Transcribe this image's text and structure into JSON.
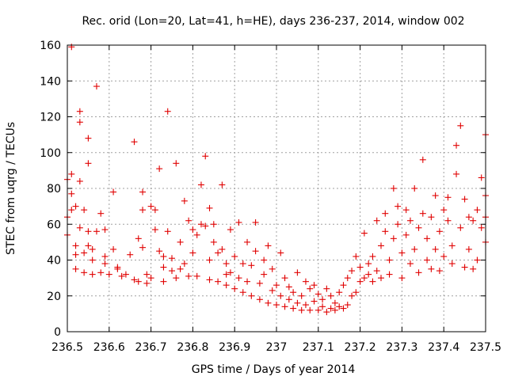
{
  "chart_data": {
    "type": "scatter",
    "title": "Rec. orid (Lon=20, Lat=41, h=HE), days 236-237, 2014, window 002",
    "xlabel": "GPS time / Days of year 2014",
    "ylabel": "STEC from uqrg / TECUs",
    "xlim": [
      236.5,
      237.5
    ],
    "ylim": [
      0,
      160
    ],
    "xticks": [
      "236.5",
      "236.6",
      "236.7",
      "236.8",
      "236.9",
      "237",
      "237.1",
      "237.2",
      "237.3",
      "237.4",
      "237.5"
    ],
    "xtick_values": [
      236.5,
      236.6,
      236.7,
      236.8,
      236.9,
      237.0,
      237.1,
      237.2,
      237.3,
      237.4,
      237.5
    ],
    "yticks": [
      "0",
      "20",
      "40",
      "60",
      "80",
      "100",
      "120",
      "140",
      "160"
    ],
    "ytick_values": [
      0,
      20,
      40,
      60,
      80,
      100,
      120,
      140,
      160
    ],
    "grid": true,
    "marker": "+",
    "color": "#e00000",
    "series": [
      {
        "points": [
          [
            236.5,
            54
          ],
          [
            236.5,
            64
          ],
          [
            236.5,
            85
          ],
          [
            236.51,
            68
          ],
          [
            236.51,
            88
          ],
          [
            236.51,
            77
          ],
          [
            236.51,
            159
          ],
          [
            236.52,
            35
          ],
          [
            236.52,
            43
          ],
          [
            236.52,
            48
          ],
          [
            236.52,
            70
          ],
          [
            236.53,
            58
          ],
          [
            236.53,
            84
          ],
          [
            236.53,
            117
          ],
          [
            236.53,
            123
          ],
          [
            236.54,
            33
          ],
          [
            236.54,
            44
          ],
          [
            236.54,
            68
          ],
          [
            236.55,
            56
          ],
          [
            236.55,
            108
          ],
          [
            236.55,
            94
          ],
          [
            236.55,
            48
          ],
          [
            236.56,
            32
          ],
          [
            236.56,
            40
          ],
          [
            236.56,
            46
          ],
          [
            236.57,
            137
          ],
          [
            236.57,
            56
          ],
          [
            236.58,
            66
          ],
          [
            236.58,
            33
          ],
          [
            236.59,
            42
          ],
          [
            236.59,
            38
          ],
          [
            236.59,
            57
          ],
          [
            236.6,
            32
          ],
          [
            236.61,
            78
          ],
          [
            236.61,
            46
          ],
          [
            236.62,
            35
          ],
          [
            236.62,
            36
          ],
          [
            236.63,
            31
          ],
          [
            236.64,
            32
          ],
          [
            236.65,
            43
          ],
          [
            236.66,
            106
          ],
          [
            236.66,
            29
          ],
          [
            236.67,
            28
          ],
          [
            236.67,
            52
          ],
          [
            236.68,
            78
          ],
          [
            236.68,
            68
          ],
          [
            236.68,
            47
          ],
          [
            236.69,
            32
          ],
          [
            236.69,
            27
          ],
          [
            236.7,
            30
          ],
          [
            236.7,
            70
          ],
          [
            236.71,
            68
          ],
          [
            236.71,
            57
          ],
          [
            236.72,
            91
          ],
          [
            236.72,
            45
          ],
          [
            236.73,
            42
          ],
          [
            236.73,
            36
          ],
          [
            236.73,
            28
          ],
          [
            236.74,
            56
          ],
          [
            236.74,
            123
          ],
          [
            236.75,
            34
          ],
          [
            236.75,
            41
          ],
          [
            236.76,
            94
          ],
          [
            236.76,
            30
          ],
          [
            236.77,
            35
          ],
          [
            236.77,
            50
          ],
          [
            236.78,
            73
          ],
          [
            236.78,
            38
          ],
          [
            236.79,
            31
          ],
          [
            236.79,
            62
          ],
          [
            236.8,
            57
          ],
          [
            236.8,
            44
          ],
          [
            236.81,
            31
          ],
          [
            236.81,
            54
          ],
          [
            236.82,
            60
          ],
          [
            236.82,
            82
          ],
          [
            236.83,
            98
          ],
          [
            236.83,
            59
          ],
          [
            236.84,
            29
          ],
          [
            236.84,
            40
          ],
          [
            236.84,
            69
          ],
          [
            236.85,
            60
          ],
          [
            236.85,
            50
          ],
          [
            236.86,
            44
          ],
          [
            236.86,
            28
          ],
          [
            236.87,
            82
          ],
          [
            236.87,
            46
          ],
          [
            236.88,
            32
          ],
          [
            236.88,
            26
          ],
          [
            236.88,
            38
          ],
          [
            236.89,
            57
          ],
          [
            236.89,
            33
          ],
          [
            236.9,
            24
          ],
          [
            236.9,
            42
          ],
          [
            236.91,
            61
          ],
          [
            236.91,
            30
          ],
          [
            236.92,
            22
          ],
          [
            236.92,
            38
          ],
          [
            236.93,
            50
          ],
          [
            236.93,
            28
          ],
          [
            236.94,
            20
          ],
          [
            236.94,
            37
          ],
          [
            236.95,
            61
          ],
          [
            236.95,
            45
          ],
          [
            236.96,
            18
          ],
          [
            236.96,
            27
          ],
          [
            236.97,
            40
          ],
          [
            236.97,
            32
          ],
          [
            236.98,
            16
          ],
          [
            236.98,
            48
          ],
          [
            236.99,
            23
          ],
          [
            236.99,
            35
          ],
          [
            237.0,
            15
          ],
          [
            237.0,
            26
          ],
          [
            237.01,
            44
          ],
          [
            237.01,
            20
          ],
          [
            237.02,
            14
          ],
          [
            237.02,
            30
          ],
          [
            237.03,
            25
          ],
          [
            237.03,
            18
          ],
          [
            237.04,
            13
          ],
          [
            237.04,
            22
          ],
          [
            237.05,
            33
          ],
          [
            237.05,
            16
          ],
          [
            237.06,
            12
          ],
          [
            237.06,
            20
          ],
          [
            237.07,
            28
          ],
          [
            237.07,
            15
          ],
          [
            237.08,
            12
          ],
          [
            237.08,
            24
          ],
          [
            237.09,
            17
          ],
          [
            237.09,
            26
          ],
          [
            237.1,
            12
          ],
          [
            237.1,
            21
          ],
          [
            237.11,
            14
          ],
          [
            237.11,
            18
          ],
          [
            237.12,
            11
          ],
          [
            237.12,
            24
          ],
          [
            237.13,
            13
          ],
          [
            237.13,
            20
          ],
          [
            237.14,
            12
          ],
          [
            237.14,
            16
          ],
          [
            237.15,
            14
          ],
          [
            237.15,
            22
          ],
          [
            237.16,
            13
          ],
          [
            237.16,
            26
          ],
          [
            237.17,
            15
          ],
          [
            237.17,
            30
          ],
          [
            237.18,
            20
          ],
          [
            237.18,
            34
          ],
          [
            237.19,
            22
          ],
          [
            237.19,
            42
          ],
          [
            237.2,
            28
          ],
          [
            237.2,
            36
          ],
          [
            237.21,
            30
          ],
          [
            237.21,
            55
          ],
          [
            237.22,
            32
          ],
          [
            237.22,
            38
          ],
          [
            237.23,
            28
          ],
          [
            237.23,
            42
          ],
          [
            237.24,
            34
          ],
          [
            237.24,
            62
          ],
          [
            237.25,
            30
          ],
          [
            237.25,
            48
          ],
          [
            237.26,
            56
          ],
          [
            237.26,
            66
          ],
          [
            237.27,
            32
          ],
          [
            237.27,
            40
          ],
          [
            237.28,
            80
          ],
          [
            237.28,
            52
          ],
          [
            237.29,
            60
          ],
          [
            237.29,
            70
          ],
          [
            237.3,
            30
          ],
          [
            237.3,
            44
          ],
          [
            237.31,
            68
          ],
          [
            237.31,
            54
          ],
          [
            237.32,
            38
          ],
          [
            237.32,
            62
          ],
          [
            237.33,
            80
          ],
          [
            237.33,
            46
          ],
          [
            237.34,
            33
          ],
          [
            237.34,
            58
          ],
          [
            237.35,
            96
          ],
          [
            237.35,
            66
          ],
          [
            237.36,
            40
          ],
          [
            237.36,
            52
          ],
          [
            237.37,
            35
          ],
          [
            237.37,
            64
          ],
          [
            237.38,
            46
          ],
          [
            237.38,
            76
          ],
          [
            237.39,
            34
          ],
          [
            237.39,
            56
          ],
          [
            237.4,
            68
          ],
          [
            237.4,
            42
          ],
          [
            237.41,
            62
          ],
          [
            237.41,
            75
          ],
          [
            237.42,
            48
          ],
          [
            237.42,
            38
          ],
          [
            237.43,
            104
          ],
          [
            237.43,
            88
          ],
          [
            237.44,
            115
          ],
          [
            237.44,
            58
          ],
          [
            237.45,
            36
          ],
          [
            237.45,
            74
          ],
          [
            237.46,
            64
          ],
          [
            237.46,
            46
          ],
          [
            237.47,
            35
          ],
          [
            237.47,
            62
          ],
          [
            237.48,
            68
          ],
          [
            237.48,
            40
          ],
          [
            237.49,
            86
          ],
          [
            237.49,
            58
          ],
          [
            237.5,
            110
          ],
          [
            237.5,
            64
          ],
          [
            237.5,
            76
          ],
          [
            237.5,
            50
          ]
        ]
      }
    ]
  }
}
